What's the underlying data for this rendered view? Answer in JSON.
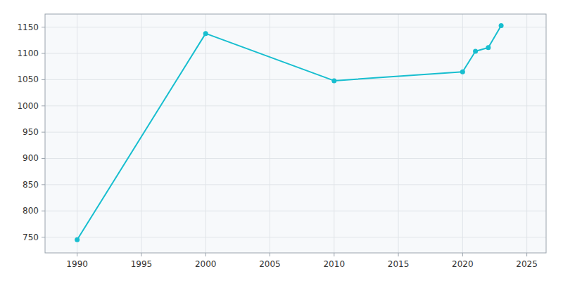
{
  "chart_data": {
    "type": "line",
    "x": [
      1990,
      2000,
      2010,
      2020,
      2021,
      2022,
      2023
    ],
    "values": [
      745,
      1138,
      1048,
      1065,
      1104,
      1111,
      1153
    ],
    "color": "#17becf",
    "marker": "circle",
    "xlim": [
      1987.5,
      2026.5
    ],
    "ylim": [
      720,
      1175
    ],
    "xticks": [
      1990,
      1995,
      2000,
      2005,
      2010,
      2015,
      2020,
      2025
    ],
    "yticks": [
      750,
      800,
      850,
      900,
      950,
      1000,
      1050,
      1100,
      1150
    ],
    "grid": true
  }
}
